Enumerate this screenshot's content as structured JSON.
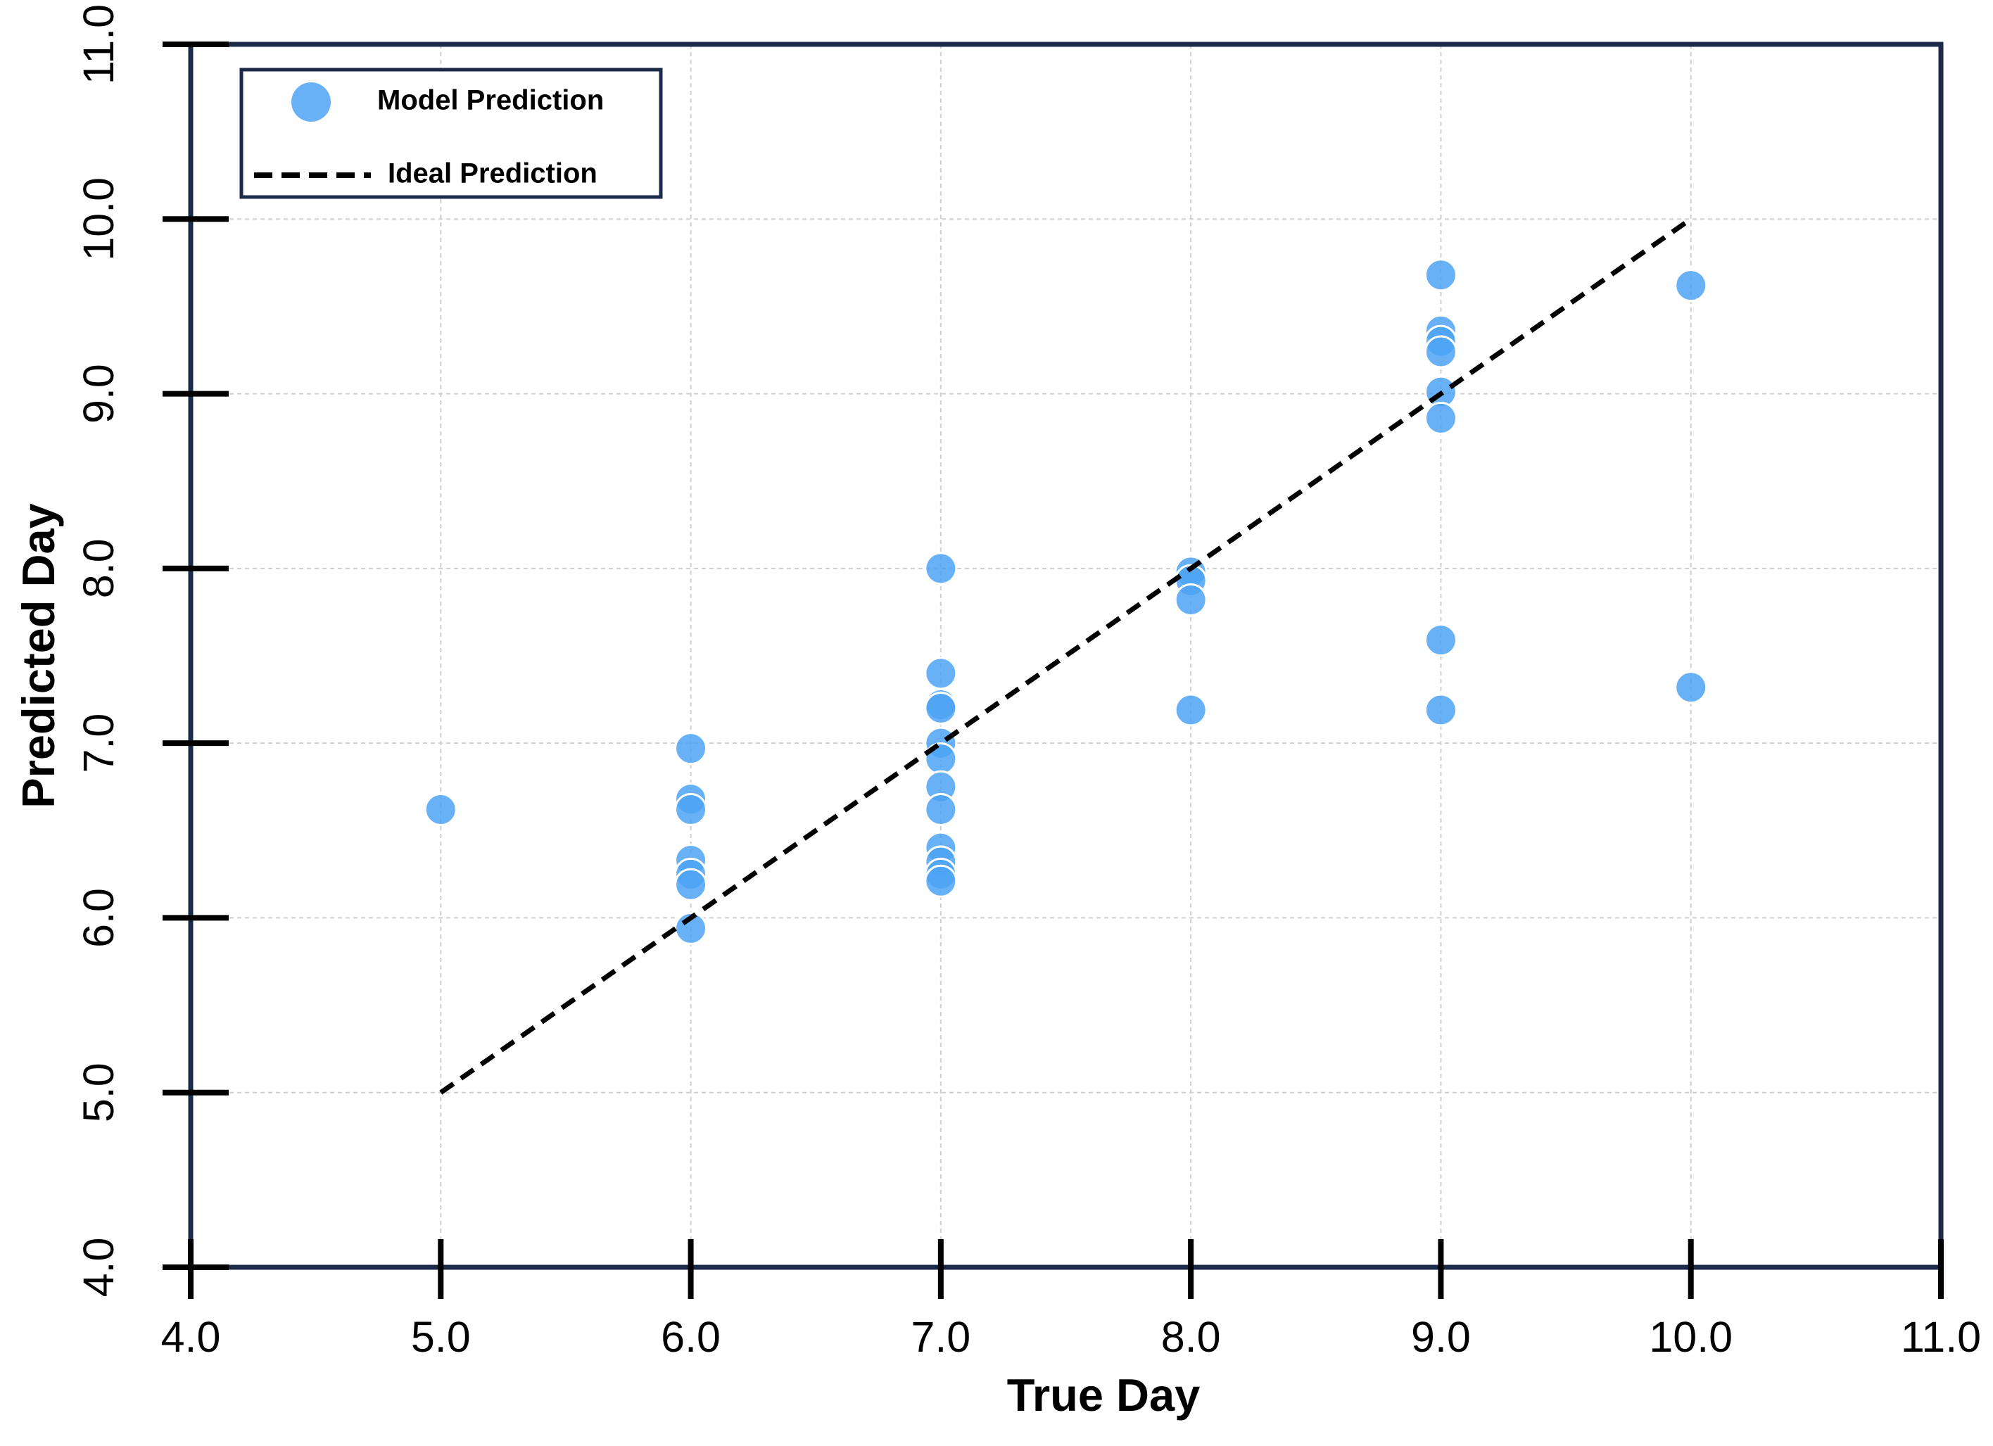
{
  "chart_data": {
    "type": "scatter",
    "xlabel": "True Day",
    "ylabel": "Predicted Day",
    "xlim": [
      4,
      11
    ],
    "ylim": [
      4,
      11
    ],
    "xticks": [
      {
        "value": 4,
        "label": "4.0"
      },
      {
        "value": 5,
        "label": "5.0"
      },
      {
        "value": 6,
        "label": "6.0"
      },
      {
        "value": 7,
        "label": "7.0"
      },
      {
        "value": 8,
        "label": "8.0"
      },
      {
        "value": 9,
        "label": "9.0"
      },
      {
        "value": 10,
        "label": "10.0"
      },
      {
        "value": 11,
        "label": "11.0"
      }
    ],
    "yticks": [
      {
        "value": 4,
        "label": "4.0"
      },
      {
        "value": 5,
        "label": "5.0"
      },
      {
        "value": 6,
        "label": "6.0"
      },
      {
        "value": 7,
        "label": "7.0"
      },
      {
        "value": 8,
        "label": "8.0"
      },
      {
        "value": 9,
        "label": "9.0"
      },
      {
        "value": 10,
        "label": "10.0"
      },
      {
        "value": 11,
        "label": "11.0"
      }
    ],
    "grid": true,
    "legend": "upper left",
    "series": [
      {
        "name": "Model Prediction",
        "type": "scatter",
        "color": "#4da3f5",
        "x": [
          5,
          6,
          6,
          6,
          6,
          6,
          6,
          6,
          7,
          7,
          7,
          7,
          7,
          7,
          7,
          7,
          7,
          7,
          7,
          7,
          8,
          8,
          8,
          8,
          9,
          9,
          9,
          9,
          9,
          9,
          9,
          9,
          10,
          10
        ],
        "values": [
          6.62,
          6.97,
          6.68,
          6.62,
          6.33,
          6.25,
          6.19,
          5.94,
          8.0,
          7.4,
          7.22,
          7.2,
          7.0,
          6.91,
          6.75,
          6.62,
          6.4,
          6.32,
          6.25,
          6.21,
          7.98,
          7.93,
          7.82,
          7.19,
          9.68,
          9.36,
          9.3,
          9.24,
          9.01,
          8.86,
          7.59,
          7.19,
          9.62,
          7.32
        ]
      },
      {
        "name": "Ideal Prediction",
        "type": "line",
        "color": "#000000",
        "dashed": true,
        "x": [
          5,
          10
        ],
        "values": [
          5,
          10
        ]
      }
    ]
  }
}
